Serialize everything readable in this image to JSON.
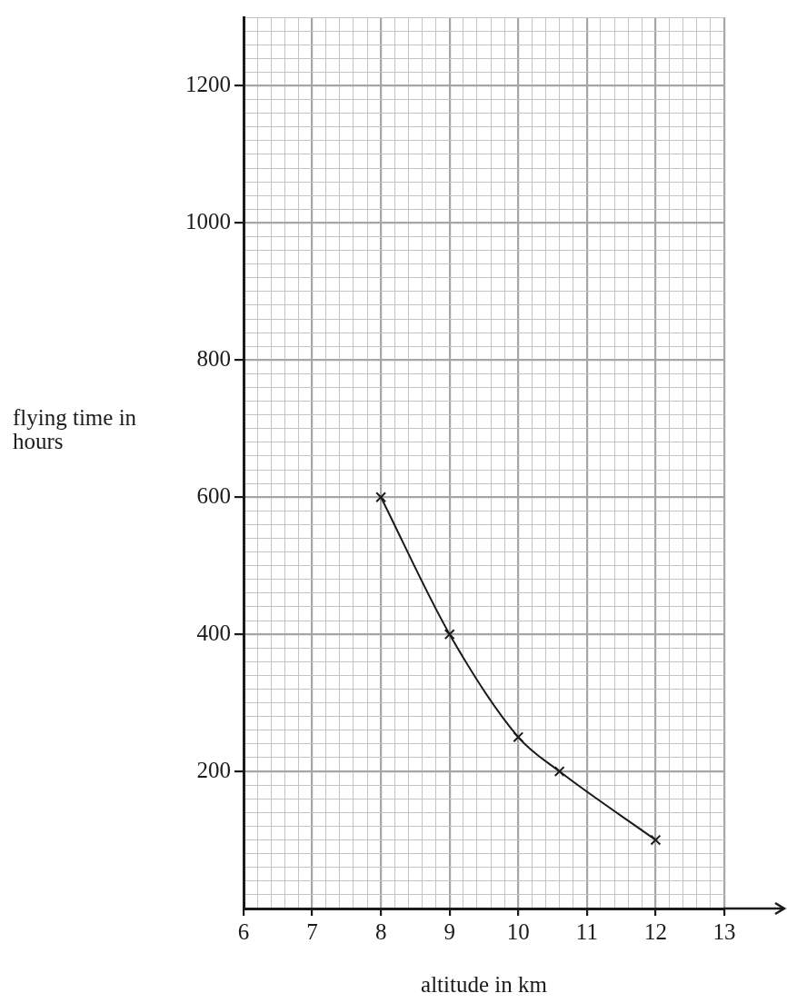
{
  "chart_data": {
    "type": "line",
    "xlabel": "altitude in km",
    "ylabel": "flying time in hours",
    "x": [
      8,
      9,
      10,
      10.6,
      12
    ],
    "series": [
      {
        "color": "#1a1a1a",
        "values": [
          600,
          400,
          250,
          200,
          100
        ]
      }
    ],
    "xlim": [
      6,
      13
    ],
    "xticks": [
      6,
      {
        "value": 6.2,
        "label": null
      },
      {
        "value": 6.4,
        "label": null
      },
      {
        "value": 6.6,
        "label": null
      },
      {
        "value": 6.8,
        "label": null
      },
      7,
      {
        "value": 7.2,
        "label": null
      },
      {
        "value": 7.4,
        "label": null
      },
      {
        "value": 7.6,
        "label": null
      },
      {
        "value": 7.8,
        "label": null
      },
      8,
      {
        "value": 8.2,
        "label": null
      },
      {
        "value": 8.4,
        "label": null
      },
      {
        "value": 8.6,
        "label": null
      },
      {
        "value": 8.8,
        "label": null
      },
      9,
      {
        "value": 9.2,
        "label": null
      },
      {
        "value": 9.4,
        "label": null
      },
      {
        "value": 9.6,
        "label": null
      },
      {
        "value": 9.8,
        "label": null
      },
      10,
      {
        "value": 10.2,
        "label": null
      },
      {
        "value": 10.4,
        "label": null
      },
      {
        "value": 10.6,
        "label": null
      },
      {
        "value": 10.8,
        "label": null
      },
      11,
      {
        "value": 11.2,
        "label": null
      },
      {
        "value": 11.4,
        "label": null
      },
      {
        "value": 11.6,
        "label": null
      },
      {
        "value": 11.8,
        "label": null
      },
      12,
      {
        "value": 12.2,
        "label": null
      },
      {
        "value": 12.4,
        "label": null
      },
      {
        "value": 12.6,
        "label": null
      },
      {
        "value": 12.8,
        "label": null
      },
      13
    ],
    "ylim": [
      0,
      1300
    ],
    "yticks": [
      {
        "value": 0,
        "label": null
      },
      {
        "value": 20,
        "label": null
      },
      {
        "value": 40,
        "label": null
      },
      {
        "value": 60,
        "label": null
      },
      {
        "value": 80,
        "label": null
      },
      {
        "value": 100,
        "label": null
      },
      {
        "value": 120,
        "label": null
      },
      {
        "value": 140,
        "label": null
      },
      {
        "value": 160,
        "label": null
      },
      {
        "value": 180,
        "label": null
      },
      200,
      {
        "value": 220,
        "label": null
      },
      {
        "value": 240,
        "label": null
      },
      {
        "value": 260,
        "label": null
      },
      {
        "value": 280,
        "label": null
      },
      {
        "value": 300,
        "label": null
      },
      {
        "value": 320,
        "label": null
      },
      {
        "value": 340,
        "label": null
      },
      {
        "value": 360,
        "label": null
      },
      {
        "value": 380,
        "label": null
      },
      400,
      {
        "value": 420,
        "label": null
      },
      {
        "value": 440,
        "label": null
      },
      {
        "value": 460,
        "label": null
      },
      {
        "value": 480,
        "label": null
      },
      {
        "value": 500,
        "label": null
      },
      {
        "value": 520,
        "label": null
      },
      {
        "value": 540,
        "label": null
      },
      {
        "value": 560,
        "label": null
      },
      {
        "value": 580,
        "label": null
      },
      600,
      {
        "value": 620,
        "label": null
      },
      {
        "value": 640,
        "label": null
      },
      {
        "value": 660,
        "label": null
      },
      {
        "value": 680,
        "label": null
      },
      {
        "value": 700,
        "label": null
      },
      {
        "value": 720,
        "label": null
      },
      {
        "value": 740,
        "label": null
      },
      {
        "value": 760,
        "label": null
      },
      {
        "value": 780,
        "label": null
      },
      800,
      {
        "value": 820,
        "label": null
      },
      {
        "value": 840,
        "label": null
      },
      {
        "value": 860,
        "label": null
      },
      {
        "value": 880,
        "label": null
      },
      {
        "value": 900,
        "label": null
      },
      {
        "value": 920,
        "label": null
      },
      {
        "value": 940,
        "label": null
      },
      {
        "value": 960,
        "label": null
      },
      {
        "value": 980,
        "label": null
      },
      1000,
      {
        "value": 1020,
        "label": null
      },
      {
        "value": 1040,
        "label": null
      },
      {
        "value": 1060,
        "label": null
      },
      {
        "value": 1080,
        "label": null
      },
      {
        "value": 1100,
        "label": null
      },
      {
        "value": 1120,
        "label": null
      },
      {
        "value": 1140,
        "label": null
      },
      {
        "value": 1160,
        "label": null
      },
      {
        "value": 1180,
        "label": null
      },
      1200,
      {
        "value": 1220,
        "label": null
      },
      {
        "value": 1240,
        "label": null
      },
      {
        "value": 1260,
        "label": null
      },
      {
        "value": 1280,
        "label": null
      },
      {
        "value": 1300,
        "label": null
      }
    ],
    "grid": true,
    "legend": false,
    "marker": "cross",
    "line_style": "solid"
  }
}
